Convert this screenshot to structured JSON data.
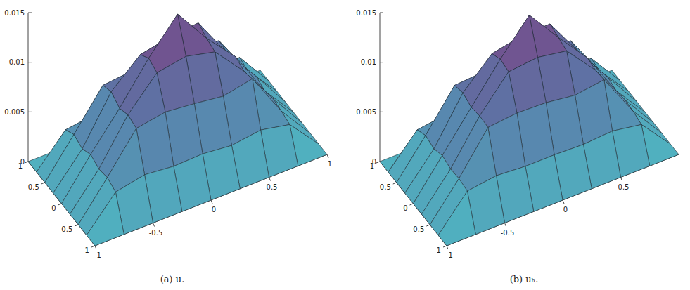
{
  "chart_data": [
    {
      "type": "surface",
      "title": "(a) u.",
      "x": [
        -1,
        -0.75,
        -0.5,
        -0.25,
        0,
        0.25,
        0.5,
        0.75,
        1
      ],
      "y": [
        -1,
        -0.75,
        -0.5,
        -0.25,
        0,
        0.25,
        0.5,
        0.75,
        1
      ],
      "z": [
        [
          0,
          0,
          0,
          0,
          0,
          0,
          0,
          0,
          0
        ],
        [
          0,
          0.0032,
          0.0038,
          0.0035,
          0.0036,
          0.0033,
          0.0037,
          0.0031,
          0
        ],
        [
          0,
          0.0036,
          0.0074,
          0.0079,
          0.0076,
          0.0072,
          0.0078,
          0.0034,
          0
        ],
        [
          0,
          0.0034,
          0.0077,
          0.0108,
          0.0113,
          0.0106,
          0.0075,
          0.0036,
          0
        ],
        [
          0,
          0.0038,
          0.0073,
          0.0112,
          0.0145,
          0.0109,
          0.0079,
          0.0033,
          0
        ],
        [
          0,
          0.0033,
          0.0079,
          0.0105,
          0.0111,
          0.0114,
          0.0072,
          0.0037,
          0
        ],
        [
          0,
          0.0037,
          0.0075,
          0.0078,
          0.0073,
          0.0077,
          0.0074,
          0.0032,
          0
        ],
        [
          0,
          0.0031,
          0.0035,
          0.0038,
          0.0034,
          0.0036,
          0.0033,
          0.0035,
          0
        ],
        [
          0,
          0,
          0,
          0,
          0,
          0,
          0,
          0,
          0
        ]
      ],
      "xlim": [
        -1,
        1
      ],
      "xticks": [
        -1,
        -0.5,
        0,
        0.5,
        1
      ],
      "ylim": [
        -1,
        1
      ],
      "yticks": [
        -1,
        -0.5,
        0,
        0.5,
        1
      ],
      "zlim": [
        0,
        0.015
      ],
      "zticks": [
        0,
        0.005,
        0.01,
        0.015
      ]
    },
    {
      "type": "surface",
      "title": "(b) uₕ.",
      "x": [
        -1,
        -0.75,
        -0.5,
        -0.25,
        0,
        0.25,
        0.5,
        0.75,
        1
      ],
      "y": [
        -1,
        -0.75,
        -0.5,
        -0.25,
        0,
        0.25,
        0.5,
        0.75,
        1
      ],
      "z": [
        [
          0,
          0,
          0,
          0,
          0,
          0,
          0,
          0,
          0
        ],
        [
          0,
          0.0033,
          0.0037,
          0.0035,
          0.0035,
          0.0034,
          0.0036,
          0.0031,
          0
        ],
        [
          0,
          0.0035,
          0.0075,
          0.0078,
          0.0077,
          0.0073,
          0.0077,
          0.0034,
          0
        ],
        [
          0,
          0.0034,
          0.0076,
          0.0109,
          0.0112,
          0.0107,
          0.0076,
          0.0035,
          0
        ],
        [
          0,
          0.0037,
          0.0074,
          0.0111,
          0.0144,
          0.011,
          0.0078,
          0.0033,
          0
        ],
        [
          0,
          0.0033,
          0.0078,
          0.0106,
          0.0112,
          0.0113,
          0.0073,
          0.0036,
          0
        ],
        [
          0,
          0.0036,
          0.0075,
          0.0077,
          0.0074,
          0.0076,
          0.0074,
          0.0032,
          0
        ],
        [
          0,
          0.0031,
          0.0035,
          0.0037,
          0.0034,
          0.0036,
          0.0034,
          0.0034,
          0
        ],
        [
          0,
          0,
          0,
          0,
          0,
          0,
          0,
          0,
          0
        ]
      ],
      "xlim": [
        -1,
        1
      ],
      "xticks": [
        -1,
        -0.5,
        0,
        0.5
      ],
      "ylim": [
        -1,
        1
      ],
      "yticks": [
        -1,
        -0.5,
        0,
        0.5,
        1
      ],
      "zlim": [
        0,
        0.015
      ],
      "zticks": [
        0,
        0.005,
        0.01,
        0.015
      ]
    }
  ]
}
